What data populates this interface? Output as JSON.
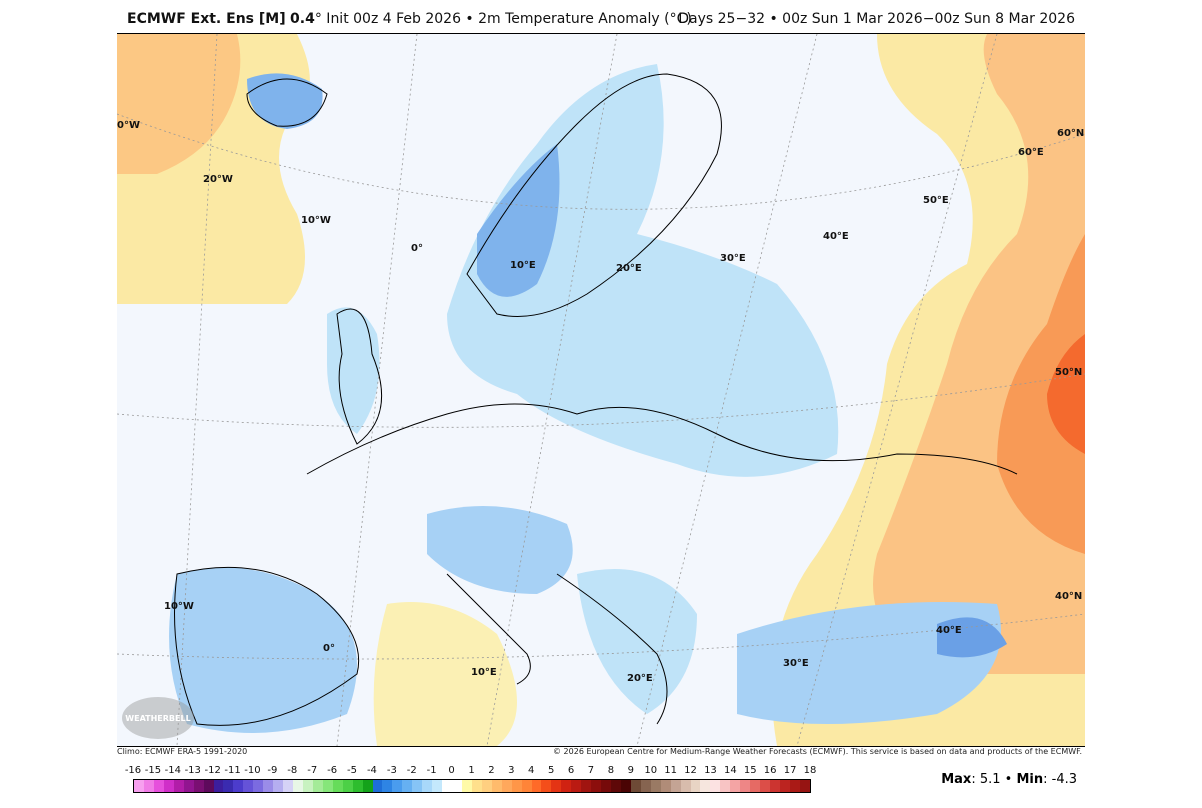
{
  "header": {
    "model": "ECMWF Ext. Ens [M]",
    "resolution": "0.4",
    "deg": "°",
    "init": " Init 00z 4 Feb 2026 • 2m Temperature Anomaly (°C)",
    "range": "Days 25−32 • 00z Sun 1 Mar 2026−00z Sun 8 Mar 2026"
  },
  "footer": {
    "climo": "Climo: ECMWF ERA-5 1991-2020",
    "copyright": "© 2026 European Centre for Medium-Range Weather Forecasts (ECMWF). This service is based on data and products of the ECMWF.",
    "max_label": "Max",
    "max": ": 5.1 • ",
    "min_label": "Min",
    "min": ": -4.3"
  },
  "logo": "WEATHERBELL",
  "map_region": "Europe",
  "graticule_labels": [
    "0°W",
    "20°W",
    "10°W",
    "0°",
    "10°E",
    "20°E",
    "30°E",
    "40°E",
    "50°E",
    "60°E",
    "60°N",
    "50°N",
    "40°N",
    "40°E",
    "30°E",
    "20°E",
    "10°E",
    "0°",
    "10°W"
  ],
  "colorbar": {
    "labels": [
      "-16",
      "-15",
      "-14",
      "-13",
      "-12",
      "-11",
      "-10",
      "-9",
      "-8",
      "-7",
      "-6",
      "-5",
      "-4",
      "-3",
      "-2",
      "-1",
      "0",
      "1",
      "2",
      "3",
      "4",
      "5",
      "6",
      "7",
      "8",
      "9",
      "10",
      "11",
      "12",
      "13",
      "14",
      "15",
      "16",
      "17",
      "18"
    ],
    "colors": [
      "#f7a0ef",
      "#f07ce6",
      "#e650dc",
      "#d02fc8",
      "#b21da8",
      "#921590",
      "#7a0f72",
      "#5e0a5c",
      "#3c1e9e",
      "#3a2bb0",
      "#4c3ccc",
      "#6553d8",
      "#7b6be0",
      "#9a8ce8",
      "#b5aef0",
      "#d5d2f6",
      "#e8f7e6",
      "#c8f2c0",
      "#a4eb98",
      "#86e67a",
      "#66dc5a",
      "#4cd046",
      "#2ebd2e",
      "#14a21a",
      "#1e6ed8",
      "#2e84e4",
      "#4a9cee",
      "#66b0f2",
      "#86c4f6",
      "#a8d8fa",
      "#c4e8fc",
      "#ffffff",
      "#ffffff",
      "#fffaa8",
      "#ffe08c",
      "#ffcf80",
      "#ffbb6c",
      "#ffa85c",
      "#ff9648",
      "#ff8438",
      "#ff6a28",
      "#f44e1a",
      "#e43414",
      "#d02212",
      "#ba1a12",
      "#a01410",
      "#8c0e0c",
      "#760a0a",
      "#5e0808",
      "#4a0404",
      "#6e4a36",
      "#866450",
      "#9a7a64",
      "#b08c78",
      "#c4a494",
      "#d8bcac",
      "#e8d4c4",
      "#f6e6de",
      "#fce2e2",
      "#f8c4c4",
      "#f4a4a4",
      "#ee8686",
      "#e66a64",
      "#dc4e48",
      "#cc3430",
      "#bc2420",
      "#aa1a16",
      "#961412"
    ]
  },
  "colors": {
    "cold": "#7fb3ec",
    "cool": "#bfe3f8",
    "warm": "#fbe9a4",
    "hot": "#f9a25e",
    "hottest": "#f46a2e"
  }
}
